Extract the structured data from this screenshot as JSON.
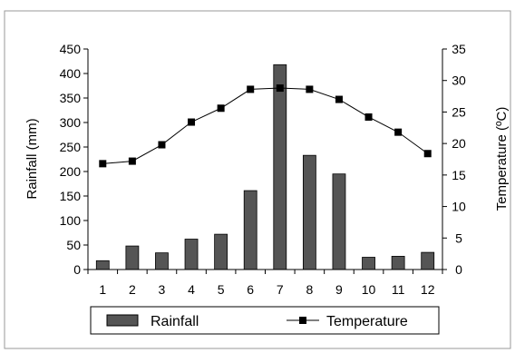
{
  "chart_data": {
    "type": "bar",
    "categories": [
      "1",
      "2",
      "3",
      "4",
      "5",
      "6",
      "7",
      "8",
      "9",
      "10",
      "11",
      "12"
    ],
    "series": [
      {
        "name": "Rainfall",
        "type": "bar",
        "axis": "left",
        "color": "#555555",
        "values": [
          18,
          48,
          34,
          62,
          72,
          161,
          418,
          233,
          195,
          25,
          27,
          35
        ]
      },
      {
        "name": "Temperature",
        "type": "line",
        "axis": "right",
        "color": "#000000",
        "marker": "square",
        "values": [
          16.8,
          17.2,
          19.8,
          23.4,
          25.6,
          28.6,
          28.8,
          28.6,
          27.0,
          24.2,
          21.8,
          18.4
        ]
      }
    ],
    "ylabel": "Rainfall (mm)",
    "ylim": [
      0,
      450
    ],
    "yticks": [
      0,
      50,
      100,
      150,
      200,
      250,
      300,
      350,
      400,
      450
    ],
    "y2label": "Temperature (ºC)",
    "y2lim": [
      0,
      35
    ],
    "y2ticks": [
      0,
      5,
      10,
      15,
      20,
      25,
      30,
      35
    ],
    "grid": false,
    "legend": {
      "placement": "bottom",
      "entries": [
        "Rainfall",
        "Temperature"
      ]
    }
  }
}
